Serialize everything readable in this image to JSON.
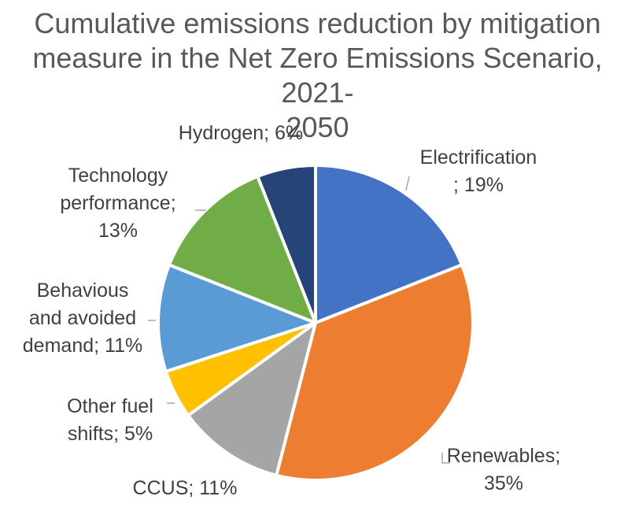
{
  "title_lines": [
    "Cumulative emissions reduction by mitigation",
    "measure in the Net Zero Emissions Scenario, 2021-",
    "2050"
  ],
  "chart_data": {
    "type": "pie",
    "title": "Cumulative emissions reduction by mitigation measure in the Net Zero Emissions Scenario, 2021-2050",
    "slices": [
      {
        "name": "Electrification",
        "value": 19,
        "label_lines": [
          "Electrification",
          "; 19%"
        ],
        "color": "#4472c4"
      },
      {
        "name": "Renewables",
        "value": 35,
        "label_lines": [
          "Renewables;",
          "35%"
        ],
        "color": "#ed7d31"
      },
      {
        "name": "CCUS",
        "value": 11,
        "label_lines": [
          "CCUS; 11%"
        ],
        "color": "#a5a5a5"
      },
      {
        "name": "Other fuel shifts",
        "value": 5,
        "label_lines": [
          "Other fuel",
          "shifts; 5%"
        ],
        "color": "#ffc000"
      },
      {
        "name": "Behavious and avoided demand",
        "value": 11,
        "label_lines": [
          "Behavious",
          "and avoided",
          "demand; 11%"
        ],
        "color": "#5b9bd5"
      },
      {
        "name": "Technology performance",
        "value": 13,
        "label_lines": [
          "Technology",
          "performance;",
          "13%"
        ],
        "color": "#70ad47"
      },
      {
        "name": "Hydrogen",
        "value": 6,
        "label_lines": [
          "Hydrogen; 6%"
        ],
        "color": "#264478"
      }
    ]
  }
}
